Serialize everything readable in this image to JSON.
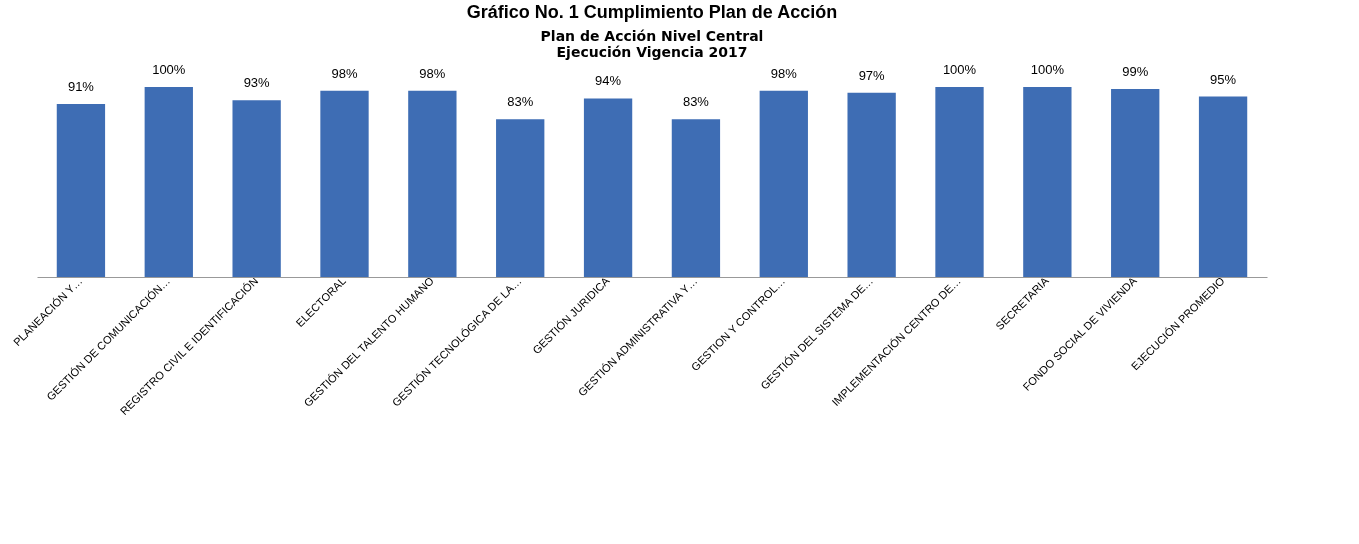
{
  "chart_data": {
    "type": "bar",
    "title": "Gráfico No. 1 Cumplimiento Plan de Acción",
    "subtitle": "Plan de Acción Nivel Central\nEjecución Vigencia 2017",
    "categories": [
      "PLANEACIÓN Y…",
      "GESTIÓN DE COMUNICACIÓN…",
      "REGISTRO CIVIL E IDENTIFICACIÓN",
      "ELECTORAL",
      "GESTIÓN DEL TALENTO HUMANO",
      "GESTIÓN TECNOLÓGICA DE LA…",
      "GESTIÓN JURIDICA",
      "GESTIÓN ADMINISTRATIVA Y…",
      "GESTION Y CONTROL…",
      "GESTIÓN DEL SISTEMA DE…",
      "IMPLEMENTACIÓN CENTRO DE…",
      "SECRETARIA",
      "FONDO SOCIAL DE VIVIENDA",
      "EJECUCIÓN PROMEDIO"
    ],
    "values": [
      91,
      100,
      93,
      98,
      98,
      83,
      94,
      83,
      98,
      97,
      100,
      100,
      99,
      95
    ],
    "value_labels": [
      "91%",
      "100%",
      "93%",
      "98%",
      "98%",
      "83%",
      "94%",
      "83%",
      "98%",
      "97%",
      "100%",
      "100%",
      "99%",
      "95%"
    ],
    "color": "#3e6db4"
  }
}
